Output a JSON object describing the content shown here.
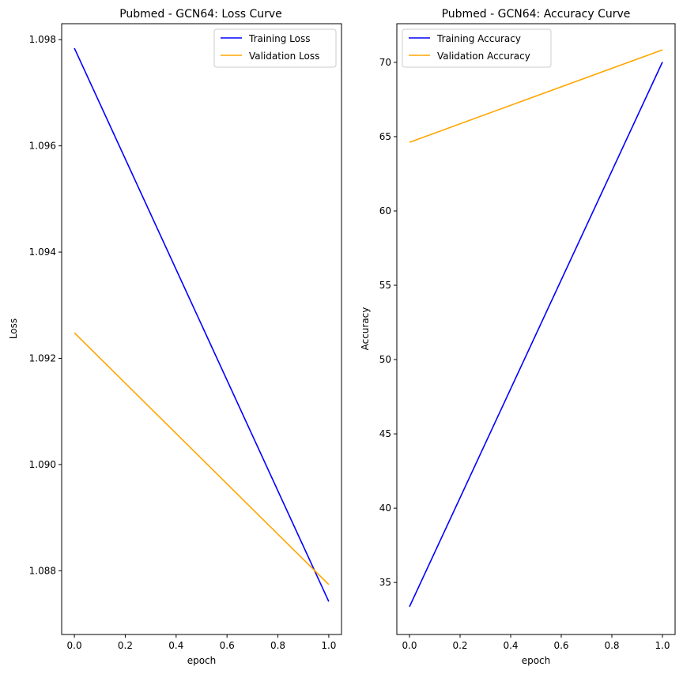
{
  "chart_data": [
    {
      "type": "line",
      "title": "Pubmed - GCN64: Loss Curve",
      "xlabel": "epoch",
      "ylabel": "Loss",
      "xlim": [
        -0.05,
        1.05
      ],
      "ylim": [
        1.0868,
        1.0983
      ],
      "xticks": [
        0.0,
        0.2,
        0.4,
        0.6,
        0.8,
        1.0
      ],
      "xtick_labels": [
        "0.0",
        "0.2",
        "0.4",
        "0.6",
        "0.8",
        "1.0"
      ],
      "yticks": [
        1.088,
        1.09,
        1.092,
        1.094,
        1.096,
        1.098
      ],
      "ytick_labels": [
        "1.088",
        "1.090",
        "1.092",
        "1.094",
        "1.096",
        "1.098"
      ],
      "legend": "top-right",
      "grid": false,
      "series": [
        {
          "name": "Training Loss",
          "color": "#0000ff",
          "x": [
            0,
            1
          ],
          "y": [
            1.09784,
            1.08742
          ]
        },
        {
          "name": "Validation Loss",
          "color": "#ffa500",
          "x": [
            0,
            1
          ],
          "y": [
            1.09248,
            1.08774
          ]
        }
      ]
    },
    {
      "type": "line",
      "title": "Pubmed - GCN64: Accuracy Curve",
      "xlabel": "epoch",
      "ylabel": "Accuracy",
      "xlim": [
        -0.05,
        1.05
      ],
      "ylim": [
        31.5,
        72.6
      ],
      "xticks": [
        0.0,
        0.2,
        0.4,
        0.6,
        0.8,
        1.0
      ],
      "xtick_labels": [
        "0.0",
        "0.2",
        "0.4",
        "0.6",
        "0.8",
        "1.0"
      ],
      "yticks": [
        35,
        40,
        45,
        50,
        55,
        60,
        65,
        70
      ],
      "ytick_labels": [
        "35",
        "40",
        "45",
        "50",
        "55",
        "60",
        "65",
        "70"
      ],
      "legend": "top-left",
      "grid": false,
      "series": [
        {
          "name": "Training Accuracy",
          "color": "#0000ff",
          "x": [
            0,
            1
          ],
          "y": [
            33.37,
            70.02
          ]
        },
        {
          "name": "Validation Accuracy",
          "color": "#ffa500",
          "x": [
            0,
            1
          ],
          "y": [
            64.62,
            70.84
          ]
        }
      ]
    }
  ]
}
